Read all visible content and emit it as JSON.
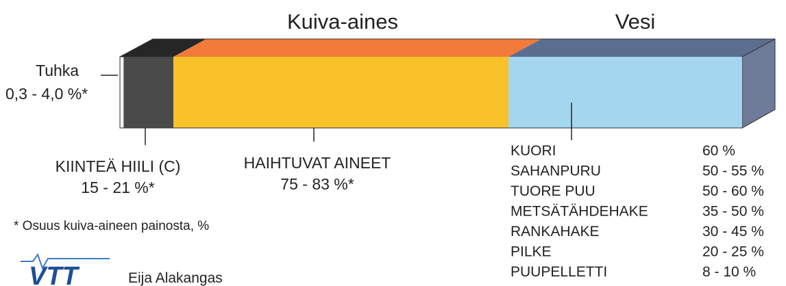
{
  "headers": {
    "dry_matter": "Kuiva-aines",
    "water": "Vesi"
  },
  "components": [
    {
      "name": "Tuhka",
      "range": "0,3 - 4,0 %*"
    },
    {
      "name": "KIINTEÄ HIILI (C)",
      "range": "15 - 21 %*"
    },
    {
      "name": "HAIHTUVAT AINEET",
      "range": "75 - 83 %*"
    }
  ],
  "footnote": "* Osuus kuiva-aineen painosta, %",
  "moisture_table": {
    "rows": [
      [
        "KUORI",
        "60 %"
      ],
      [
        "SAHANPURU",
        "50 - 55 %"
      ],
      [
        "TUORE PUU",
        "50 - 60 %"
      ],
      [
        "METSÄTÄHDEHAKE",
        "35 - 50 %"
      ],
      [
        "RANKAHAKE",
        "30 - 45 %"
      ],
      [
        "PILKE",
        "20 - 25 %"
      ],
      [
        "PUUPELLETTI",
        "8 - 10 %"
      ]
    ]
  },
  "logo": "VTT",
  "author": "Eija Alakangas"
}
